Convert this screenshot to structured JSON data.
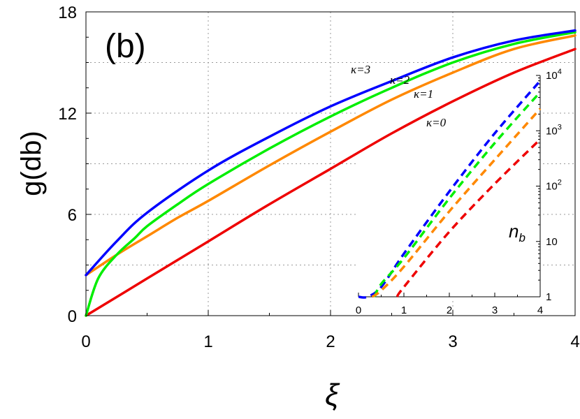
{
  "chart_data": [
    {
      "type": "line",
      "panel_label": "(b)",
      "xlabel": "ξ",
      "ylabel": "g(db)",
      "xlim": [
        0,
        4
      ],
      "ylim": [
        0,
        18
      ],
      "x_ticks": [
        "0",
        "1",
        "2",
        "3",
        "4"
      ],
      "y_ticks": [
        "0",
        "6",
        "12",
        "18"
      ],
      "grid": true,
      "grid_style": "dotted",
      "series": [
        {
          "name": "κ=3",
          "color": "#0000ff",
          "x": [
            0,
            0.25,
            0.5,
            1.0,
            1.5,
            2.0,
            2.5,
            3.0,
            3.5,
            4.0
          ],
          "y": [
            2.4,
            4.4,
            6.1,
            8.6,
            10.6,
            12.4,
            13.9,
            15.3,
            16.3,
            16.9
          ]
        },
        {
          "name": "κ=2",
          "color": "#00ee00",
          "x": [
            0,
            0.1,
            0.25,
            0.4,
            0.5,
            0.75,
            1.0,
            1.5,
            2.0,
            2.5,
            3.0,
            3.5,
            4.0
          ],
          "y": [
            0,
            2.2,
            3.6,
            4.6,
            5.3,
            6.6,
            7.8,
            9.9,
            11.8,
            13.5,
            15.0,
            16.1,
            16.8
          ]
        },
        {
          "name": "κ=1",
          "color": "#ff8800",
          "x": [
            0,
            0.25,
            0.5,
            0.75,
            1.0,
            1.5,
            2.0,
            2.5,
            3.0,
            3.5,
            4.0
          ],
          "y": [
            2.4,
            3.6,
            4.7,
            5.8,
            6.8,
            8.9,
            10.9,
            12.8,
            14.4,
            15.8,
            16.6
          ]
        },
        {
          "name": "κ=0",
          "color": "#ee0000",
          "x": [
            0,
            0.5,
            1.0,
            1.5,
            2.0,
            2.5,
            3.0,
            3.5,
            4.0
          ],
          "y": [
            0,
            2.2,
            4.4,
            6.6,
            8.7,
            10.8,
            12.7,
            14.4,
            15.8
          ]
        }
      ]
    },
    {
      "type": "line",
      "inset": true,
      "ylabel": "n_b",
      "xlim": [
        0,
        4
      ],
      "ylim": [
        1,
        10000
      ],
      "y_scale": "log",
      "x_ticks": [
        "0",
        "1",
        "2",
        "3",
        "4"
      ],
      "y_ticks": [
        "1",
        "10",
        "10^2",
        "10^3",
        "10^4"
      ],
      "line_style": "dashed",
      "series": [
        {
          "color": "#0000ff",
          "x": [
            0,
            0.2,
            0.5,
            1.0,
            2.0,
            3.0,
            4.0
          ],
          "y": [
            1,
            1,
            1.5,
            6,
            80,
            900,
            8000
          ]
        },
        {
          "color": "#00ee00",
          "x": [
            0.35,
            0.5,
            1.0,
            2.0,
            3.0,
            4.0
          ],
          "y": [
            1,
            1.7,
            5,
            60,
            600,
            5000
          ]
        },
        {
          "color": "#ff8800",
          "x": [
            0.3,
            0.5,
            1.0,
            2.0,
            3.0,
            4.0
          ],
          "y": [
            1,
            1.3,
            3.5,
            35,
            300,
            2500
          ]
        },
        {
          "color": "#ee0000",
          "x": [
            0.85,
            1.0,
            2.0,
            3.0,
            4.0
          ],
          "y": [
            1,
            1.5,
            15,
            110,
            700
          ]
        }
      ]
    }
  ],
  "annotations": {
    "k3": "κ=3",
    "k2": "κ=2",
    "k1": "κ=1",
    "k0": "κ=0"
  }
}
